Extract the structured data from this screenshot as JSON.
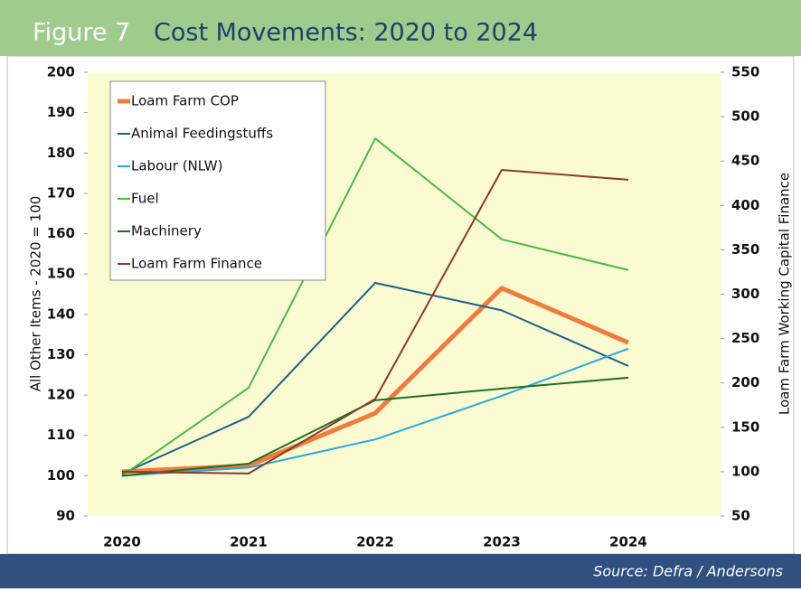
{
  "chart_data": {
    "type": "line",
    "figure_label": "Figure 7",
    "title": "Cost Movements: 2020 to 2024",
    "source": "Source:  Defra / Andersons",
    "ylabel": "All Other Items - 2020 = 100",
    "y2label": "Loam Farm Working Capital Finance",
    "categories": [
      "2020",
      "2021",
      "2022",
      "2023",
      "2024"
    ],
    "ylim": [
      90,
      200
    ],
    "yticks": [
      90,
      100,
      110,
      120,
      130,
      140,
      150,
      160,
      170,
      180,
      190,
      200
    ],
    "y2lim": [
      50,
      550
    ],
    "y2ticks": [
      50,
      100,
      150,
      200,
      250,
      300,
      350,
      400,
      450,
      500,
      550
    ],
    "legend": "upper left",
    "series": [
      {
        "name": "Loam Farm COP",
        "color": "#f07b3a",
        "width": 5,
        "values": [
          101,
          102.5,
          115.5,
          146.5,
          133
        ]
      },
      {
        "name": "Animal Feedingstuffs",
        "color": "#1f5f8b",
        "width": 2,
        "values": [
          100.5,
          114.6,
          147.8,
          141,
          127.2
        ]
      },
      {
        "name": "Labour (NLW)",
        "color": "#2aa9e0",
        "width": 2,
        "values": [
          100,
          102,
          109,
          119.8,
          131.5
        ]
      },
      {
        "name": "Fuel",
        "color": "#4cb848",
        "width": 2,
        "values": [
          100,
          121.8,
          183.6,
          158.6,
          151
        ]
      },
      {
        "name": "Machinery",
        "color": "#1e6e2a",
        "width": 2,
        "values": [
          100,
          103,
          118.7,
          121.6,
          124.3
        ]
      },
      {
        "name": "Loam Farm Finance",
        "color": "#8b3a2a",
        "width": 2,
        "axis": "y2",
        "values": [
          100,
          98,
          182,
          440,
          429
        ]
      }
    ]
  }
}
